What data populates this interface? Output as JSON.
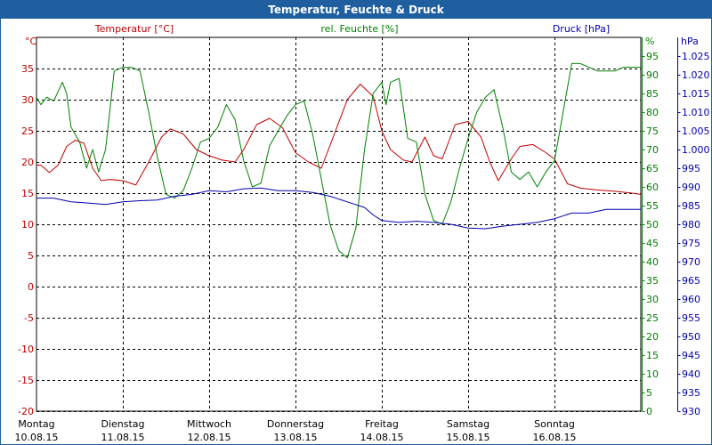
{
  "window": {
    "title": "Temperatur, Feuchte & Druck"
  },
  "colors": {
    "temperature": "#c00000",
    "humidity": "#008000",
    "pressure": "#0000b0",
    "titlebar": "#1f5f9f",
    "grid": "#000000"
  },
  "chart_data": {
    "type": "line",
    "title": "Temperatur, Feuchte & Druck",
    "grid": true,
    "days": [
      {
        "weekday": "Montag",
        "date": "10.08.15"
      },
      {
        "weekday": "Dienstag",
        "date": "11.08.15"
      },
      {
        "weekday": "Mittwoch",
        "date": "12.08.15"
      },
      {
        "weekday": "Donnerstag",
        "date": "13.08.15"
      },
      {
        "weekday": "Freitag",
        "date": "14.08.15"
      },
      {
        "weekday": "Samstag",
        "date": "15.08.15"
      },
      {
        "weekday": "Sonntag",
        "date": "16.08.15"
      }
    ],
    "xlim": [
      0,
      7
    ],
    "axes": {
      "temperature": {
        "label": "Temperatur [°C]",
        "unit": "°C",
        "ylim": [
          -20,
          40
        ],
        "ticks": [
          "35",
          "30",
          "25",
          "20",
          "15",
          "10",
          "5",
          "0",
          "-5",
          "-10",
          "-15",
          "-20"
        ],
        "tick_values": [
          35,
          30,
          25,
          20,
          15,
          10,
          5,
          0,
          -5,
          -10,
          -15,
          -20
        ]
      },
      "humidity": {
        "label": "rel. Feuchte [%]",
        "unit": "%",
        "ylim": [
          0,
          100
        ],
        "ticks": [
          "95",
          "90",
          "85",
          "80",
          "75",
          "70",
          "65",
          "60",
          "55",
          "50",
          "45",
          "40",
          "35",
          "30",
          "25",
          "20",
          "15",
          "10",
          "5",
          "0"
        ],
        "tick_values": [
          95,
          90,
          85,
          80,
          75,
          70,
          65,
          60,
          55,
          50,
          45,
          40,
          35,
          30,
          25,
          20,
          15,
          10,
          5,
          0
        ]
      },
      "pressure": {
        "label": "Druck [hPa]",
        "unit": "hPa",
        "ylim": [
          930,
          1030
        ],
        "ticks": [
          "1.025",
          "1.020",
          "1.015",
          "1.010",
          "1.005",
          "1.000",
          "995",
          "990",
          "985",
          "980",
          "975",
          "970",
          "965",
          "960",
          "955",
          "950",
          "945",
          "940",
          "935",
          "930"
        ],
        "tick_values": [
          1025,
          1020,
          1015,
          1010,
          1005,
          1000,
          995,
          990,
          985,
          980,
          975,
          970,
          965,
          960,
          955,
          950,
          945,
          940,
          935,
          930
        ]
      }
    },
    "series": [
      {
        "name": "Temperatur [°C]",
        "axis": "temperature",
        "x": [
          0,
          0.05,
          0.15,
          0.25,
          0.35,
          0.45,
          0.55,
          0.65,
          0.75,
          0.85,
          1.0,
          1.15,
          1.3,
          1.45,
          1.55,
          1.7,
          1.85,
          2.0,
          2.15,
          2.3,
          2.4,
          2.55,
          2.7,
          2.85,
          3.0,
          3.15,
          3.3,
          3.45,
          3.6,
          3.75,
          3.9,
          4.0,
          4.1,
          4.25,
          4.35,
          4.5,
          4.6,
          4.7,
          4.85,
          5.0,
          5.15,
          5.25,
          5.35,
          5.5,
          5.6,
          5.75,
          5.9,
          6.0,
          6.15,
          6.3,
          6.5,
          6.7,
          6.9,
          7.0
        ],
        "values": [
          19.5,
          19.5,
          18.3,
          19.5,
          22.5,
          23.5,
          23.0,
          19.0,
          17.0,
          17.2,
          17.0,
          16.3,
          20.0,
          24.0,
          25.3,
          24.5,
          22.0,
          21.0,
          20.3,
          20.0,
          22.0,
          26.0,
          27.0,
          25.5,
          21.5,
          20.0,
          19.0,
          24.5,
          30.0,
          32.5,
          30.5,
          25.0,
          22.0,
          20.3,
          20.0,
          24.0,
          21.0,
          20.5,
          26.0,
          26.5,
          24.0,
          20.0,
          17.0,
          20.5,
          22.5,
          22.8,
          21.5,
          20.5,
          16.5,
          15.8,
          15.5,
          15.3,
          15.0,
          14.8
        ]
      },
      {
        "name": "rel. Feuchte [%]",
        "axis": "humidity",
        "x": [
          0,
          0.05,
          0.12,
          0.2,
          0.3,
          0.35,
          0.4,
          0.5,
          0.58,
          0.65,
          0.72,
          0.8,
          0.9,
          1.0,
          1.1,
          1.2,
          1.3,
          1.4,
          1.5,
          1.6,
          1.7,
          1.8,
          1.9,
          2.0,
          2.1,
          2.2,
          2.3,
          2.4,
          2.5,
          2.6,
          2.7,
          2.8,
          2.9,
          3.0,
          3.1,
          3.2,
          3.3,
          3.4,
          3.5,
          3.6,
          3.7,
          3.75,
          3.8,
          3.9,
          4.0,
          4.05,
          4.1,
          4.2,
          4.3,
          4.4,
          4.5,
          4.6,
          4.7,
          4.8,
          4.9,
          5.0,
          5.1,
          5.2,
          5.3,
          5.4,
          5.5,
          5.6,
          5.7,
          5.8,
          5.9,
          6.0,
          6.1,
          6.2,
          6.3,
          6.4,
          6.5,
          6.6,
          6.7,
          6.8,
          6.9,
          7.0
        ],
        "values": [
          84,
          82,
          84,
          83,
          88,
          85,
          76,
          72,
          65,
          70,
          64,
          70,
          91,
          92,
          92,
          91,
          80,
          68,
          58,
          57,
          59,
          65,
          72,
          73,
          76,
          82,
          78,
          67,
          60,
          61,
          71,
          75,
          79,
          82,
          83,
          74,
          62,
          50,
          43,
          41,
          49,
          60,
          70,
          85,
          88,
          82,
          88,
          89,
          73,
          72,
          58,
          51,
          50,
          56,
          65,
          73,
          80,
          84,
          86,
          76,
          64,
          62,
          64,
          60,
          64,
          67,
          80,
          93,
          93,
          92,
          91,
          91,
          91,
          92,
          92,
          92
        ]
      },
      {
        "name": "Druck [hPa]",
        "axis": "pressure",
        "x": [
          0,
          0.2,
          0.4,
          0.6,
          0.8,
          1.0,
          1.2,
          1.4,
          1.6,
          1.8,
          2.0,
          2.2,
          2.4,
          2.6,
          2.8,
          3.0,
          3.2,
          3.4,
          3.6,
          3.8,
          3.9,
          4.0,
          4.2,
          4.4,
          4.6,
          4.8,
          5.0,
          5.2,
          5.4,
          5.6,
          5.8,
          6.0,
          6.2,
          6.4,
          6.6,
          6.8,
          7.0
        ],
        "values": [
          987,
          987,
          986,
          985.7,
          985.3,
          986,
          986.3,
          986.5,
          987.5,
          988,
          989,
          988.7,
          989.5,
          989.7,
          989,
          989,
          988.5,
          987.5,
          986,
          984.5,
          982.5,
          981,
          980.5,
          980.8,
          980.5,
          980,
          979,
          978.8,
          979.5,
          980,
          980.5,
          981.5,
          983,
          983,
          984,
          984,
          984
        ]
      }
    ]
  }
}
